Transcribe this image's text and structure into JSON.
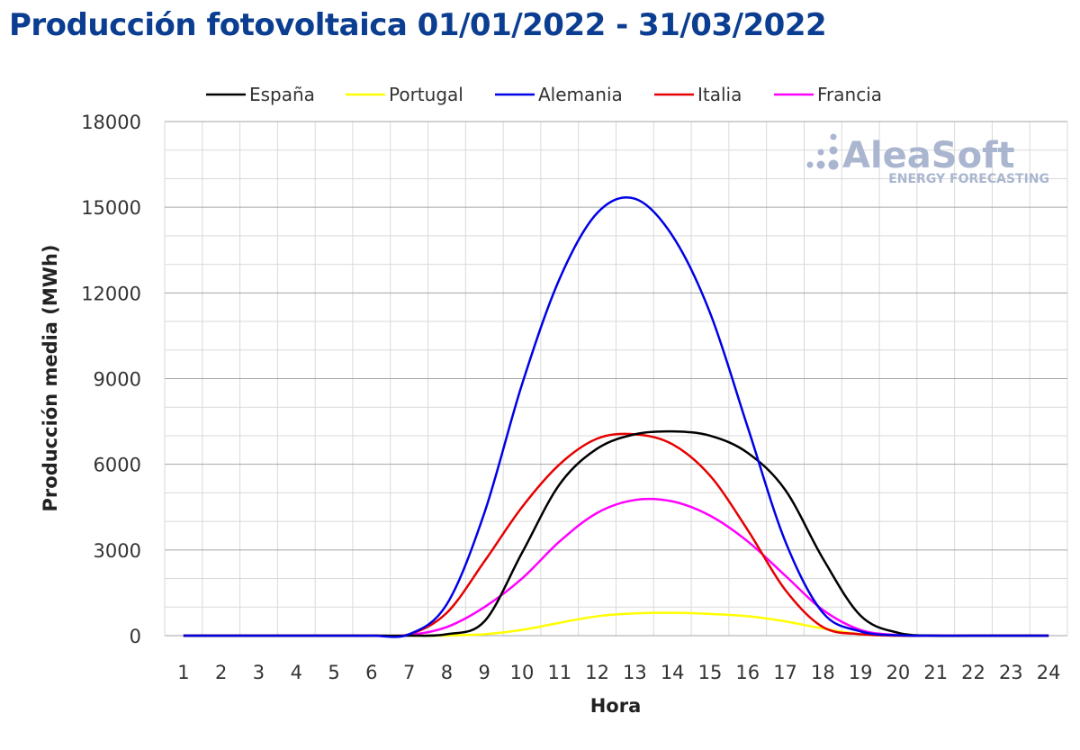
{
  "title": "Producción fotovoltaica 01/01/2022 - 31/03/2022",
  "watermark": {
    "name": "AleaSoft",
    "tagline": "ENERGY FORECASTING",
    "color": "#aab5cf"
  },
  "chart_data": {
    "type": "line",
    "xlabel": "Hora",
    "ylabel": "Producción media (MWh)",
    "ylim": [
      0,
      18000
    ],
    "yticks": [
      "0",
      "3000",
      "6000",
      "9000",
      "12000",
      "15000",
      "18000"
    ],
    "x": [
      "1",
      "2",
      "3",
      "4",
      "5",
      "6",
      "7",
      "8",
      "9",
      "10",
      "11",
      "12",
      "13",
      "14",
      "15",
      "16",
      "17",
      "18",
      "19",
      "20",
      "21",
      "22",
      "23",
      "24"
    ],
    "grid": true,
    "legend_position": "top",
    "series": [
      {
        "name": "España",
        "color": "#000000",
        "values": [
          0,
          0,
          0,
          0,
          0,
          0,
          0,
          50,
          500,
          2900,
          5300,
          6550,
          7050,
          7150,
          7000,
          6400,
          5100,
          2700,
          700,
          100,
          0,
          0,
          0,
          0
        ]
      },
      {
        "name": "Portugal",
        "color": "#ffff00",
        "values": [
          0,
          0,
          0,
          0,
          0,
          0,
          0,
          5,
          50,
          200,
          450,
          680,
          780,
          800,
          760,
          680,
          500,
          250,
          50,
          5,
          0,
          0,
          0,
          0
        ]
      },
      {
        "name": "Alemania",
        "color": "#0000e6",
        "values": [
          0,
          0,
          0,
          0,
          0,
          0,
          50,
          1100,
          4300,
          8800,
          12500,
          14800,
          15300,
          14000,
          11300,
          7300,
          3300,
          800,
          150,
          10,
          0,
          0,
          0,
          0
        ]
      },
      {
        "name": "Italia",
        "color": "#e60000",
        "values": [
          0,
          0,
          0,
          0,
          0,
          0,
          50,
          800,
          2600,
          4500,
          6000,
          6900,
          7050,
          6700,
          5600,
          3700,
          1600,
          300,
          50,
          0,
          0,
          0,
          0,
          0
        ]
      },
      {
        "name": "Francia",
        "color": "#ff00ff",
        "values": [
          0,
          0,
          0,
          0,
          0,
          0,
          20,
          300,
          1000,
          2000,
          3300,
          4300,
          4750,
          4700,
          4200,
          3300,
          2100,
          900,
          200,
          20,
          0,
          0,
          0,
          0
        ]
      }
    ]
  }
}
